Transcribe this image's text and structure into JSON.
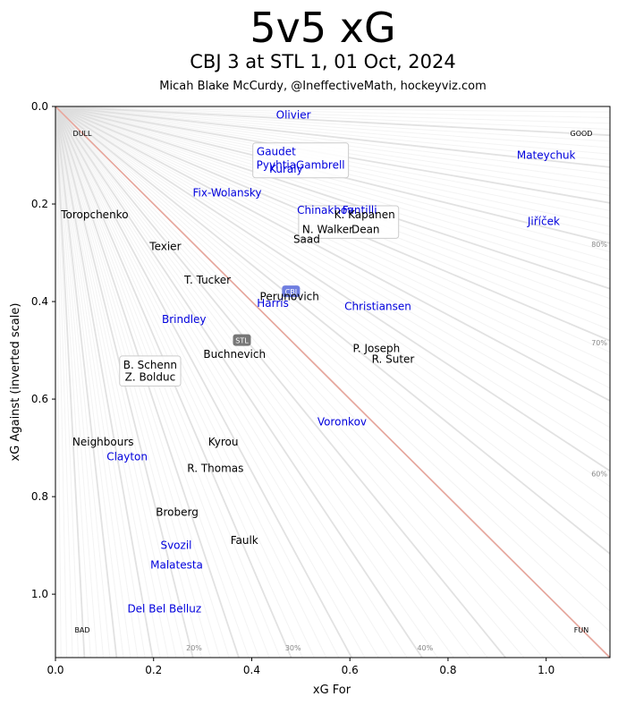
{
  "chart_data": {
    "type": "scatter",
    "title": "5v5 xG",
    "subtitle": "CBJ 3 at STL 1, 01 Oct, 2024",
    "credit": "Micah Blake McCurdy, @IneffectiveMath, hockeyviz.com",
    "xlabel": "xG For",
    "ylabel": "xG Against (inverted scale)",
    "xlim": [
      0,
      1.13
    ],
    "ylim": [
      1.13,
      0
    ],
    "y_inverted": true,
    "xticks": [
      "0.0",
      "0.2",
      "0.4",
      "0.6",
      "0.8",
      "1.0"
    ],
    "yticks": [
      "0.0",
      "0.2",
      "0.4",
      "0.6",
      "0.8",
      "1.0"
    ],
    "corner_labels": {
      "top_left": "DULL",
      "top_right": "GOOD",
      "bottom_left": "BAD",
      "bottom_right": "FUN"
    },
    "percent_labels": [
      {
        "text": "80%",
        "pct": 80
      },
      {
        "text": "70%",
        "pct": 70
      },
      {
        "text": "60%",
        "pct": 60
      },
      {
        "text": "40%",
        "pct": 40
      },
      {
        "text": "30%",
        "pct": 30
      },
      {
        "text": "20%",
        "pct": 20
      }
    ],
    "colors": {
      "CBJ": "#0000dd",
      "STL": "#000000",
      "diagonal": "#e8a69c",
      "rays": "#dddddd",
      "cbj_team_badge": "#6f7ee0",
      "stl_team_badge": "#777777"
    },
    "teams": [
      {
        "name": "CBJ",
        "label": "CBJ",
        "x": 0.48,
        "y": 0.38
      },
      {
        "name": "STL",
        "label": "STL",
        "x": 0.38,
        "y": 0.48
      }
    ],
    "players": [
      {
        "name": "Olivier",
        "team": "CBJ",
        "x": 0.485,
        "y": 0.017
      },
      {
        "name": "Gaudet",
        "team": "CBJ",
        "x": 0.45,
        "y": 0.093
      },
      {
        "name": "Pyyhtia",
        "team": "CBJ",
        "x": 0.45,
        "y": 0.12
      },
      {
        "name": "Gambrell",
        "team": "CBJ",
        "x": 0.54,
        "y": 0.12
      },
      {
        "name": "Kuraly",
        "team": "CBJ",
        "x": 0.47,
        "y": 0.128
      },
      {
        "name": "Mateychuk",
        "team": "CBJ",
        "x": 1.0,
        "y": 0.1
      },
      {
        "name": "Fix-Wolansky",
        "team": "CBJ",
        "x": 0.35,
        "y": 0.177
      },
      {
        "name": "Chinakhov",
        "team": "CBJ",
        "x": 0.55,
        "y": 0.213
      },
      {
        "name": "Fantilli",
        "team": "CBJ",
        "x": 0.62,
        "y": 0.213
      },
      {
        "name": "Jiříček",
        "team": "CBJ",
        "x": 0.995,
        "y": 0.236
      },
      {
        "name": "Toropchenko",
        "team": "STL",
        "x": 0.08,
        "y": 0.222
      },
      {
        "name": "K. Kapanen",
        "team": "STL",
        "x": 0.63,
        "y": 0.222
      },
      {
        "name": "N. Walker",
        "team": "STL",
        "x": 0.555,
        "y": 0.252
      },
      {
        "name": "Dean",
        "team": "STL",
        "x": 0.632,
        "y": 0.252
      },
      {
        "name": "Saad",
        "team": "STL",
        "x": 0.512,
        "y": 0.272
      },
      {
        "name": "Texier",
        "team": "STL",
        "x": 0.224,
        "y": 0.287
      },
      {
        "name": "T. Tucker",
        "team": "STL",
        "x": 0.31,
        "y": 0.356
      },
      {
        "name": "Perunovich",
        "team": "STL",
        "x": 0.477,
        "y": 0.39
      },
      {
        "name": "Harris",
        "team": "CBJ",
        "x": 0.443,
        "y": 0.404
      },
      {
        "name": "Christiansen",
        "team": "CBJ",
        "x": 0.657,
        "y": 0.41
      },
      {
        "name": "Brindley",
        "team": "CBJ",
        "x": 0.262,
        "y": 0.437
      },
      {
        "name": "Buchnevich",
        "team": "STL",
        "x": 0.365,
        "y": 0.508
      },
      {
        "name": "P. Joseph",
        "team": "STL",
        "x": 0.654,
        "y": 0.496
      },
      {
        "name": "R. Suter",
        "team": "STL",
        "x": 0.688,
        "y": 0.518
      },
      {
        "name": "B. Schenn",
        "team": "STL",
        "x": 0.193,
        "y": 0.53
      },
      {
        "name": "Z. Bolduc",
        "team": "STL",
        "x": 0.193,
        "y": 0.555
      },
      {
        "name": "Voronkov",
        "team": "CBJ",
        "x": 0.584,
        "y": 0.647
      },
      {
        "name": "Neighbours",
        "team": "STL",
        "x": 0.097,
        "y": 0.688
      },
      {
        "name": "Kyrou",
        "team": "STL",
        "x": 0.342,
        "y": 0.688
      },
      {
        "name": "Clayton",
        "team": "CBJ",
        "x": 0.146,
        "y": 0.718
      },
      {
        "name": "R. Thomas",
        "team": "STL",
        "x": 0.326,
        "y": 0.742
      },
      {
        "name": "Broberg",
        "team": "STL",
        "x": 0.248,
        "y": 0.832
      },
      {
        "name": "Faulk",
        "team": "STL",
        "x": 0.385,
        "y": 0.89
      },
      {
        "name": "Svozil",
        "team": "CBJ",
        "x": 0.246,
        "y": 0.9
      },
      {
        "name": "Malatesta",
        "team": "CBJ",
        "x": 0.247,
        "y": 0.94
      },
      {
        "name": "Del Bel Belluz",
        "team": "CBJ",
        "x": 0.222,
        "y": 1.03
      }
    ],
    "label_boxes": [
      [
        "Gaudet",
        "Pyyhtia",
        "Gambrell",
        "Kuraly"
      ],
      [
        "K. Kapanen",
        "N. Walker",
        "Dean"
      ],
      [
        "B. Schenn",
        "Z. Bolduc"
      ]
    ]
  }
}
